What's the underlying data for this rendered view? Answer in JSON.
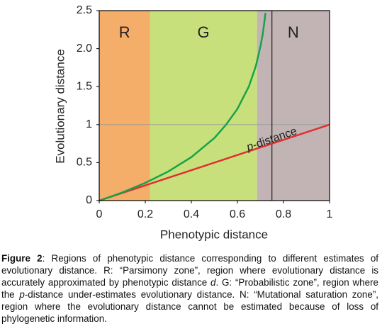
{
  "chart_data": {
    "type": "line",
    "xlabel": "Phenotypic distance",
    "ylabel": "Evolutionary distance",
    "xlim": [
      0,
      1
    ],
    "ylim": [
      0,
      2.5
    ],
    "xticks": [
      0,
      0.2,
      0.4,
      0.6,
      0.8,
      1
    ],
    "yticks": [
      0,
      0.5,
      1,
      1.5,
      {
        "value": 2,
        "label": "2.0"
      },
      2.5
    ],
    "regions": [
      {
        "label": "R",
        "start": 0,
        "end": 0.22,
        "color": "#f5ad6a"
      },
      {
        "label": "G",
        "start": 0.22,
        "end": 0.685,
        "color": "#c8e07b"
      },
      {
        "label": "N",
        "start": 0.685,
        "end": 1,
        "color": "#c2b4b4"
      }
    ],
    "vline": 0.75,
    "hline": 1,
    "series": [
      {
        "color": "#e03030",
        "x": [
          0,
          1
        ],
        "values": [
          0,
          1
        ]
      },
      {
        "color": "#16a34a",
        "x": [
          0,
          0.05,
          0.1,
          0.2,
          0.3,
          0.4,
          0.5,
          0.55,
          0.6,
          0.65,
          0.68,
          0.7,
          0.71,
          0.722
        ],
        "values": [
          0,
          0.052,
          0.107,
          0.233,
          0.383,
          0.572,
          0.824,
          0.996,
          1.207,
          1.504,
          1.77,
          2.03,
          2.19,
          2.47
        ]
      }
    ],
    "annotation": {
      "parts": [
        "p",
        "-distance"
      ],
      "x": 0.75,
      "y": 0.8
    }
  },
  "caption": [
    {
      "text": "Figure 2",
      "style": "bold"
    },
    {
      "text": ": Regions of phenotypic distance corresponding to different estimates of evolutionary distance. R: “Parsimony zone”, region where evolutionary distance is accurately approximated by phenotypic distance ",
      "style": "normal"
    },
    {
      "text": "d",
      "style": "italic"
    },
    {
      "text": ". G: “Probabilistic zone”, region where the ",
      "style": "normal"
    },
    {
      "text": "p",
      "style": "italic"
    },
    {
      "text": "-distance under-estimates evolutionary distance. N: “Mutational saturation zone”, region where the evolutionary distance cannot be estimated because of loss of phylogenetic information.",
      "style": "normal"
    }
  ]
}
